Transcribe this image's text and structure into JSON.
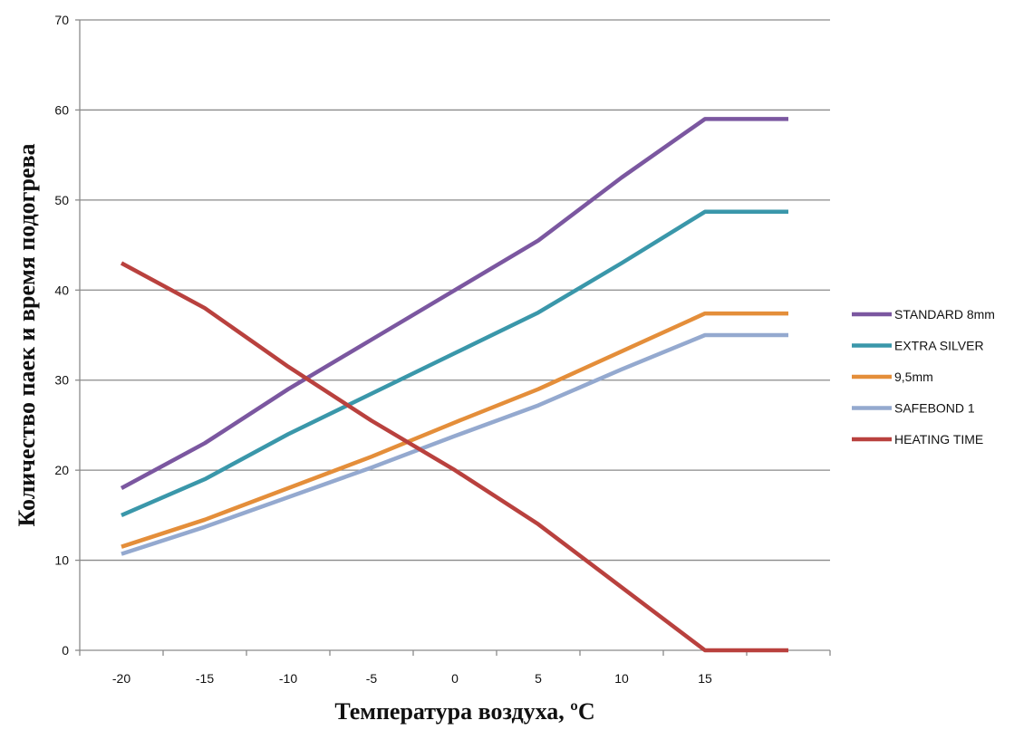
{
  "chart_data": {
    "type": "line",
    "title": "",
    "xlabel": "Температура воздуха, ºС",
    "ylabel": "Количество паек и время подогрева",
    "categories": [
      "-20",
      "-15",
      "-10",
      "-5",
      "0",
      "5",
      "10",
      "15",
      ""
    ],
    "x_tick_labels": [
      "-20",
      "-15",
      "-10",
      "-5",
      "0",
      "5",
      "10",
      "15"
    ],
    "y_ticks": [
      "0",
      "10",
      "20",
      "30",
      "40",
      "50",
      "60",
      "70"
    ],
    "ylim": [
      0,
      70
    ],
    "grid": true,
    "legend_position": "right",
    "series": [
      {
        "name": "STANDARD 8mm",
        "color": "#7B57A0",
        "values": [
          18,
          23,
          29,
          34.5,
          40,
          45.5,
          52.5,
          59,
          59
        ]
      },
      {
        "name": "EXTRA SILVER",
        "color": "#3A97AA",
        "values": [
          15,
          19,
          24,
          28.5,
          33,
          37.5,
          43,
          48.7,
          48.7
        ]
      },
      {
        "name": "9,5mm",
        "color": "#E48E3A",
        "values": [
          11.5,
          14.5,
          18,
          21.5,
          25.3,
          29,
          33.2,
          37.4,
          37.4
        ]
      },
      {
        "name": "SAFEBOND 1",
        "color": "#94A9CF",
        "values": [
          10.7,
          13.7,
          17,
          20.3,
          23.8,
          27.2,
          31.2,
          35,
          35
        ]
      },
      {
        "name": "HEATING TIME",
        "color": "#B9413E",
        "values": [
          43,
          38,
          31.5,
          25.5,
          20,
          14,
          7,
          0,
          0
        ]
      }
    ]
  }
}
